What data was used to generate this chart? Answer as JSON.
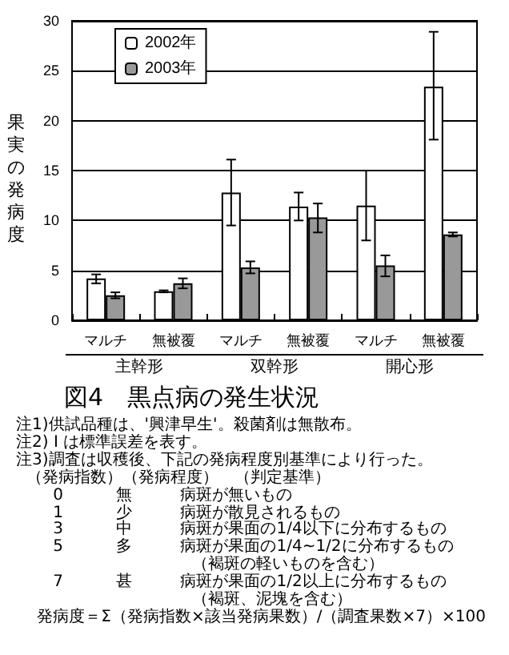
{
  "chart_data": {
    "type": "bar",
    "title": "図4　黒点病の発生状況",
    "ylabel": "果実の発病度",
    "categories": [
      "マルチ",
      "無被覆",
      "マルチ",
      "無被覆",
      "マルチ",
      "無被覆"
    ],
    "series": [
      {
        "name": "2002年",
        "color": "#ffffff",
        "values": [
          4.2,
          2.9,
          12.8,
          11.4,
          11.5,
          23.4
        ],
        "errors": [
          [
            3.7,
            4.6
          ],
          [
            2.8,
            3.0
          ],
          [
            9.5,
            16.1
          ],
          [
            10.0,
            12.8
          ],
          [
            8.0,
            15.0
          ],
          [
            18.1,
            28.9
          ]
        ]
      },
      {
        "name": "2003年",
        "color": "#999999",
        "values": [
          2.5,
          3.7,
          5.3,
          10.3,
          5.5,
          8.6
        ],
        "errors": [
          [
            2.2,
            2.8
          ],
          [
            3.2,
            4.2
          ],
          [
            4.7,
            5.9
          ],
          [
            8.8,
            11.7
          ],
          [
            4.4,
            6.5
          ],
          [
            8.4,
            8.8
          ]
        ]
      }
    ],
    "ylim": [
      0,
      30
    ],
    "yticks": [
      0,
      5,
      10,
      15,
      20,
      25,
      30
    ],
    "grid": "y",
    "legend": "top left",
    "annotations": [
      "主幹形",
      "双幹形",
      "開心形",
      "注1)供試品種は、'興津早生'。殺菌剤は無散布。",
      "注2) I は標準誤差を表す。",
      "注3)調査は収穫後、下記の発病程度別基準により行った。",
      "  （発病指数）（発病程度）　（判定基準）",
      "　　 0　　　 無　　　病斑が無いもの",
      "　　 1　　　 少　　　病斑が散見されるもの",
      "　　 3　　　 中　　　病斑が果面の1/4以下に分布するもの",
      "　　 5　　　 多　　　病斑が果面の1/4~1/2に分布するもの",
      "　　　　　　　　　　　（褐斑の軽いものを含む）",
      "　　 7　　　 甚　　　病斑が果面の1/2以上に分布するもの",
      "　　　　　　　　　　　（褐斑、泥塊を含む）",
      "　 発病度＝Σ（発病指数×該当発病果数）/（調査果数×7）×100"
    ]
  }
}
